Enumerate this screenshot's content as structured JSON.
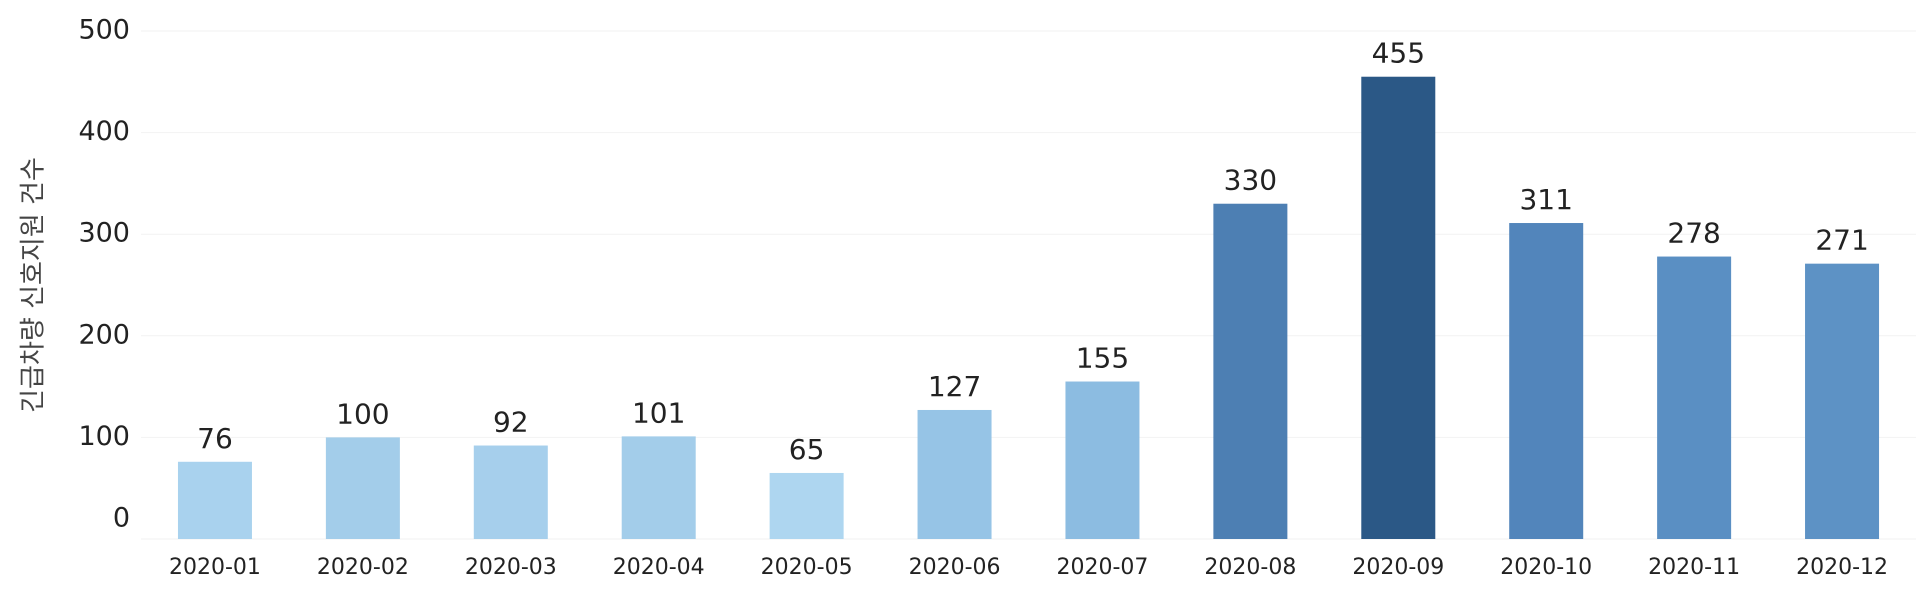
{
  "chart_data": {
    "type": "bar",
    "y_label": "긴급차량 신호지원 건수",
    "categories": [
      "2020-01",
      "2020-02",
      "2020-03",
      "2020-04",
      "2020-05",
      "2020-06",
      "2020-07",
      "2020-08",
      "2020-09",
      "2020-10",
      "2020-11",
      "2020-12"
    ],
    "values": [
      76,
      100,
      92,
      101,
      65,
      127,
      155,
      330,
      455,
      311,
      278,
      271
    ],
    "colors": [
      "#a9d2ee",
      "#a3cdea",
      "#a6cfec",
      "#a3cdea",
      "#aed6f0",
      "#96c4e6",
      "#8cbce1",
      "#4d7fb3",
      "#2b5886",
      "#5285bb",
      "#5a8fc3",
      "#5d92c5"
    ],
    "ylim": [
      0,
      500
    ],
    "yticks": [
      0,
      100,
      200,
      300,
      400,
      500
    ],
    "grid": true
  }
}
